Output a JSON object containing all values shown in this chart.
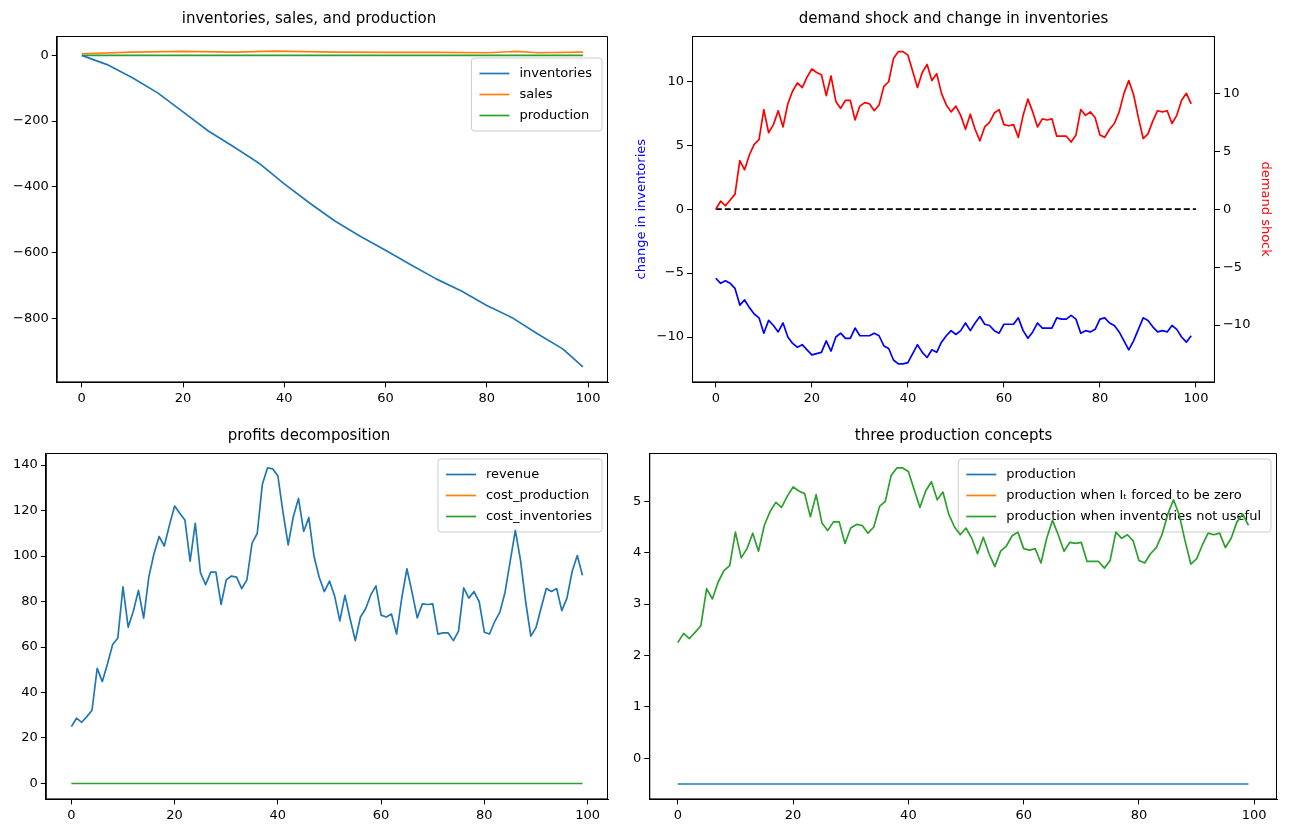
{
  "chart_data": [
    {
      "type": "line",
      "title": "inventories, sales, and production",
      "xlim": [
        -4.95,
        103.95
      ],
      "xticks": [
        0,
        20,
        40,
        60,
        80,
        100
      ],
      "ylim": [
        -995,
        59
      ],
      "yticks": [
        {
          "value": -800,
          "label": "−800"
        },
        {
          "value": -600,
          "label": "−600"
        },
        {
          "value": -400,
          "label": "−400"
        },
        {
          "value": -200,
          "label": "−200"
        },
        0
      ],
      "grid": false,
      "legend": "top right",
      "marker": "none",
      "series": [
        {
          "name": "inventories",
          "color": "#1f77b4",
          "x": [
            0,
            5,
            10,
            15,
            20,
            25,
            30,
            35,
            40,
            45,
            50,
            55,
            60,
            65,
            70,
            75,
            80,
            85,
            90,
            95,
            99
          ],
          "values": [
            0,
            -28,
            -68,
            -114,
            -172,
            -230,
            -278,
            -328,
            -391,
            -449,
            -504,
            -550,
            -593,
            -637,
            -680,
            -717,
            -761,
            -798,
            -847,
            -893,
            -948
          ]
        },
        {
          "name": "sales",
          "color": "#ff7f0e",
          "x": [
            0,
            10,
            20,
            30,
            38,
            50,
            60,
            70,
            80,
            86,
            90,
            99
          ],
          "values": [
            5,
            10,
            12,
            10,
            13,
            10,
            9,
            9,
            8,
            12,
            8,
            10
          ]
        },
        {
          "name": "production",
          "color": "#2ca02c",
          "x": [
            0,
            99
          ],
          "values": [
            0,
            0
          ]
        }
      ]
    },
    {
      "type": "line",
      "title": "demand shock and change in inventories",
      "ylabel": "change in inventories",
      "y2label": "demand shock",
      "xlim": [
        -4.95,
        103.95
      ],
      "xticks": [
        0,
        20,
        40,
        60,
        80,
        100
      ],
      "ylim": [
        -13.55,
        13.55
      ],
      "yticks": [
        {
          "value": -10,
          "label": "−10"
        },
        {
          "value": -5,
          "label": "−5"
        },
        0,
        5,
        10
      ],
      "y2lim": [
        -14.95,
        14.95
      ],
      "y2ticks": [
        {
          "value": -10,
          "label": "−10"
        },
        {
          "value": -5,
          "label": "−5"
        },
        0,
        5,
        10
      ],
      "grid": false,
      "marker": "none",
      "x": [
        0,
        1,
        2,
        3,
        4,
        5,
        6,
        7,
        8,
        9,
        10,
        11,
        12,
        13,
        14,
        15,
        16,
        17,
        18,
        19,
        20,
        21,
        22,
        23,
        24,
        25,
        26,
        27,
        28,
        29,
        30,
        31,
        32,
        33,
        34,
        35,
        36,
        37,
        38,
        39,
        40,
        41,
        42,
        43,
        44,
        45,
        46,
        47,
        48,
        49,
        50,
        51,
        52,
        53,
        54,
        55,
        56,
        57,
        58,
        59,
        60,
        61,
        62,
        63,
        64,
        65,
        66,
        67,
        68,
        69,
        70,
        71,
        72,
        73,
        74,
        75,
        76,
        77,
        78,
        79,
        80,
        81,
        82,
        83,
        84,
        85,
        86,
        87,
        88,
        89,
        90,
        91,
        92,
        93,
        94,
        95,
        96,
        97,
        98,
        99
      ],
      "series": [
        {
          "color": "#0000ff",
          "values": [
            -5.4,
            -5.8,
            -5.6,
            -5.8,
            -6.2,
            -7.5,
            -7.1,
            -7.7,
            -8.2,
            -8.5,
            -9.7,
            -8.7,
            -9.1,
            -9.6,
            -8.9,
            -10.0,
            -10.5,
            -10.8,
            -10.6,
            -11.0,
            -11.4,
            -11.3,
            -11.2,
            -10.3,
            -11.1,
            -10.0,
            -9.7,
            -10.1,
            -10.1,
            -9.3,
            -9.9,
            -9.9,
            -9.9,
            -9.7,
            -9.9,
            -10.7,
            -10.9,
            -11.8,
            -12.1,
            -12.1,
            -12.0,
            -11.3,
            -10.6,
            -11.2,
            -11.6,
            -11.0,
            -11.2,
            -10.4,
            -9.9,
            -9.5,
            -9.8,
            -9.5,
            -8.9,
            -9.5,
            -8.9,
            -8.4,
            -9.0,
            -9.1,
            -9.5,
            -9.7,
            -9.0,
            -9.0,
            -9.0,
            -8.5,
            -9.5,
            -10.1,
            -9.6,
            -8.9,
            -9.3,
            -9.3,
            -9.3,
            -8.5,
            -8.6,
            -8.6,
            -8.3,
            -8.6,
            -9.7,
            -9.5,
            -9.6,
            -9.4,
            -8.6,
            -8.5,
            -8.9,
            -9.1,
            -9.6,
            -10.3,
            -11.0,
            -10.3,
            -9.4,
            -8.5,
            -8.7,
            -9.2,
            -9.6,
            -9.5,
            -9.6,
            -9.1,
            -9.4,
            -10.0,
            -10.4,
            -9.9
          ]
        },
        {
          "color": "#ff0000",
          "axis": "y2",
          "values": [
            0,
            0.7,
            0.3,
            0.8,
            1.3,
            4.2,
            3.4,
            4.7,
            5.6,
            6.0,
            8.6,
            6.6,
            7.3,
            8.5,
            7.1,
            9.1,
            10.2,
            10.9,
            10.5,
            11.4,
            12.1,
            11.8,
            11.6,
            9.8,
            11.5,
            9.3,
            8.7,
            9.4,
            9.4,
            7.7,
            8.9,
            9.2,
            9.1,
            8.5,
            9.0,
            10.6,
            11.0,
            13.0,
            13.6,
            13.6,
            13.3,
            11.9,
            10.5,
            11.8,
            12.5,
            11.1,
            11.7,
            10.0,
            9.0,
            8.4,
            8.9,
            8.1,
            6.9,
            8.2,
            6.9,
            5.9,
            7.1,
            7.5,
            8.3,
            8.6,
            7.3,
            7.2,
            7.3,
            6.2,
            8.1,
            9.5,
            8.4,
            7.1,
            7.8,
            7.7,
            7.8,
            6.3,
            6.3,
            6.3,
            5.8,
            6.4,
            8.6,
            8.1,
            8.4,
            7.9,
            6.4,
            6.2,
            6.9,
            7.4,
            8.4,
            10.0,
            11.1,
            9.9,
            7.9,
            6.1,
            6.5,
            7.6,
            8.5,
            8.4,
            8.5,
            7.4,
            8.1,
            9.4,
            10.0,
            9.1
          ]
        },
        {
          "color": "#000000",
          "line_style": "dashed",
          "x": [
            0,
            100
          ],
          "values": [
            0,
            0
          ]
        }
      ]
    },
    {
      "type": "line",
      "title": "profits decomposition",
      "xlim": [
        -4.95,
        103.95
      ],
      "xticks": [
        0,
        20,
        40,
        60,
        80,
        100
      ],
      "ylim": [
        -7,
        145.3
      ],
      "yticks": [
        0,
        20,
        40,
        60,
        80,
        100,
        120,
        140
      ],
      "grid": false,
      "legend": "top right",
      "marker": "none",
      "x": [
        0,
        1,
        2,
        3,
        4,
        5,
        6,
        7,
        8,
        9,
        10,
        11,
        12,
        13,
        14,
        15,
        16,
        17,
        18,
        19,
        20,
        21,
        22,
        23,
        24,
        25,
        26,
        27,
        28,
        29,
        30,
        31,
        32,
        33,
        34,
        35,
        36,
        37,
        38,
        39,
        40,
        41,
        42,
        43,
        44,
        45,
        46,
        47,
        48,
        49,
        50,
        51,
        52,
        53,
        54,
        55,
        56,
        57,
        58,
        59,
        60,
        61,
        62,
        63,
        64,
        65,
        66,
        67,
        68,
        69,
        70,
        71,
        72,
        73,
        74,
        75,
        76,
        77,
        78,
        79,
        80,
        81,
        82,
        83,
        84,
        85,
        86,
        87,
        88,
        89,
        90,
        91,
        92,
        93,
        94,
        95,
        96,
        97,
        98,
        99
      ],
      "series": [
        {
          "name": "revenue",
          "color": "#1f77b4",
          "values": [
            25,
            28.7,
            26.9,
            29.4,
            32.2,
            50.6,
            44.8,
            52.6,
            61.1,
            64,
            86.5,
            68.7,
            75.7,
            84.9,
            72.7,
            90.7,
            101,
            108.6,
            104.4,
            113.6,
            122,
            118.8,
            115.8,
            97.7,
            114.4,
            92.7,
            87.4,
            92.9,
            92.9,
            78.7,
            89.5,
            91.2,
            90.7,
            85.7,
            89.5,
            105.7,
            109.9,
            131.6,
            138.8,
            138.3,
            135.3,
            119.1,
            104.9,
            117.4,
            125.3,
            110.8,
            116.9,
            99.9,
            90.7,
            84.4,
            89,
            82.4,
            71.5,
            82.7,
            72.3,
            62.8,
            73.2,
            76.8,
            82.9,
            86.9,
            74,
            73.2,
            74.5,
            65.7,
            81.5,
            94.4,
            84,
            72.8,
            79,
            78.7,
            79,
            65.7,
            66.2,
            66.2,
            62.8,
            67,
            86,
            81.5,
            84.4,
            79.9,
            66.5,
            65.7,
            71.2,
            75.3,
            84,
            97.7,
            111.3,
            98.2,
            79.9,
            64.8,
            68.5,
            77.3,
            85.7,
            84.4,
            85.7,
            76,
            81.5,
            93.2,
            100.2,
            91.5
          ]
        },
        {
          "name": "cost_production",
          "color": "#ff7f0e",
          "values": [
            null,
            null,
            null,
            null,
            null,
            null,
            null,
            null,
            null,
            null,
            null,
            null,
            null,
            null,
            null,
            null,
            null,
            null,
            null,
            null,
            null,
            null,
            null,
            null,
            null,
            null,
            null,
            null,
            null,
            null,
            null,
            null,
            null,
            null,
            null,
            null,
            null,
            null,
            null,
            null,
            null,
            null,
            null,
            null,
            null,
            null,
            null,
            null,
            null,
            null,
            null,
            null,
            null,
            null,
            null,
            null,
            null,
            null,
            null,
            null,
            null,
            null,
            null,
            null,
            null,
            null,
            null,
            null,
            null,
            null,
            null,
            null,
            null,
            null,
            null,
            null,
            null,
            null,
            null,
            null,
            null,
            null,
            null,
            null,
            null,
            null,
            null,
            null,
            null,
            null,
            null,
            null,
            null,
            null,
            null,
            null,
            null,
            null,
            null,
            null
          ]
        },
        {
          "name": "cost_inventories",
          "color": "#2ca02c",
          "x": [
            0,
            99
          ],
          "values": [
            0,
            0
          ]
        }
      ]
    },
    {
      "type": "line",
      "title": "three production concepts",
      "xlim": [
        -4.95,
        103.95
      ],
      "xticks": [
        0,
        20,
        40,
        60,
        80,
        100
      ],
      "ylim": [
        -0.8,
        5.94
      ],
      "yticks": [
        0,
        1,
        2,
        3,
        4,
        5
      ],
      "grid": false,
      "legend": "top right",
      "marker": "none",
      "x": [
        0,
        1,
        2,
        3,
        4,
        5,
        6,
        7,
        8,
        9,
        10,
        11,
        12,
        13,
        14,
        15,
        16,
        17,
        18,
        19,
        20,
        21,
        22,
        23,
        24,
        25,
        26,
        27,
        28,
        29,
        30,
        31,
        32,
        33,
        34,
        35,
        36,
        37,
        38,
        39,
        40,
        41,
        42,
        43,
        44,
        45,
        46,
        47,
        48,
        49,
        50,
        51,
        52,
        53,
        54,
        55,
        56,
        57,
        58,
        59,
        60,
        61,
        62,
        63,
        64,
        65,
        66,
        67,
        68,
        69,
        70,
        71,
        72,
        73,
        74,
        75,
        76,
        77,
        78,
        79,
        80,
        81,
        82,
        83,
        84,
        85,
        86,
        87,
        88,
        89,
        90,
        91,
        92,
        93,
        94,
        95,
        96,
        97,
        98,
        99
      ],
      "series": [
        {
          "name": "production",
          "color": "#1f77b4",
          "x": [
            0,
            99
          ],
          "values": [
            -0.5,
            -0.5
          ]
        },
        {
          "name": "production when Iₜ forced to be zero",
          "color": "#ff7f0e",
          "values": [
            null,
            null,
            null,
            null,
            null,
            null,
            null,
            null,
            null,
            null,
            null,
            null,
            null,
            null,
            null,
            null,
            null,
            null,
            null,
            null,
            null,
            null,
            null,
            null,
            null,
            null,
            null,
            null,
            null,
            null,
            null,
            null,
            null,
            null,
            null,
            null,
            null,
            null,
            null,
            null,
            null,
            null,
            null,
            null,
            null,
            null,
            null,
            null,
            null,
            null,
            null,
            null,
            null,
            null,
            null,
            null,
            null,
            null,
            null,
            null,
            null,
            null,
            null,
            null,
            null,
            null,
            null,
            null,
            null,
            null,
            null,
            null,
            null,
            null,
            null,
            null,
            null,
            null,
            null,
            null,
            null,
            null,
            null,
            null,
            null,
            null,
            null,
            null,
            null,
            null,
            null,
            null,
            null,
            null,
            null,
            null,
            null,
            null,
            null,
            null
          ]
        },
        {
          "name": "production when inventories not useful",
          "color": "#2ca02c",
          "values": [
            2.25,
            2.43,
            2.33,
            2.45,
            2.58,
            3.3,
            3.1,
            3.43,
            3.65,
            3.75,
            4.4,
            3.9,
            4.08,
            4.38,
            4.03,
            4.53,
            4.8,
            4.98,
            4.88,
            5.1,
            5.28,
            5.2,
            5.15,
            4.7,
            5.13,
            4.58,
            4.43,
            4.6,
            4.6,
            4.18,
            4.48,
            4.55,
            4.53,
            4.38,
            4.5,
            4.9,
            5.0,
            5.5,
            5.65,
            5.65,
            5.58,
            5.23,
            4.88,
            5.2,
            5.38,
            5.03,
            5.18,
            4.75,
            4.5,
            4.35,
            4.48,
            4.28,
            3.98,
            4.3,
            3.98,
            3.73,
            4.03,
            4.13,
            4.33,
            4.4,
            4.08,
            4.05,
            4.08,
            3.8,
            4.28,
            4.63,
            4.35,
            4.03,
            4.2,
            4.18,
            4.2,
            3.83,
            3.83,
            3.83,
            3.7,
            3.85,
            4.4,
            4.28,
            4.35,
            4.23,
            3.85,
            3.8,
            3.98,
            4.1,
            4.35,
            4.75,
            5.03,
            4.73,
            4.23,
            3.78,
            3.88,
            4.15,
            4.38,
            4.35,
            4.38,
            4.1,
            4.28,
            4.6,
            4.75,
            4.53
          ]
        }
      ]
    }
  ]
}
